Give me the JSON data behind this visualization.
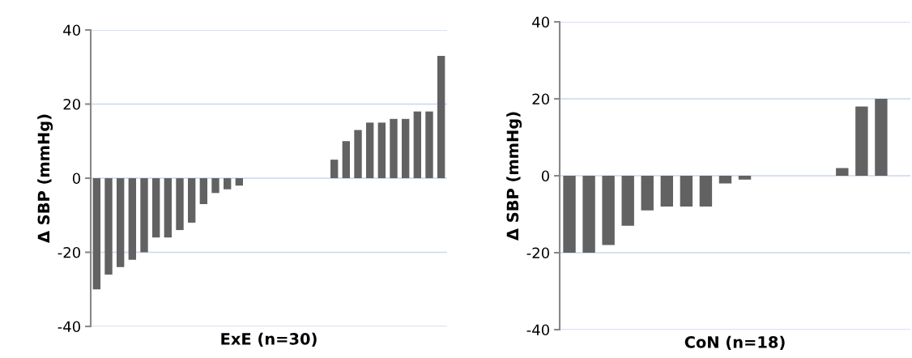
{
  "chart_data": [
    {
      "type": "bar",
      "xlabel": "ExE (n=30)",
      "ylabel": "Δ SBP (mmHg)",
      "categories": [
        null,
        null,
        null,
        null,
        null,
        null,
        null,
        null,
        null,
        null,
        null,
        null,
        null,
        null,
        null,
        null,
        null,
        null,
        null,
        null,
        null,
        null,
        null,
        null,
        null,
        null,
        null,
        null,
        null,
        null
      ],
      "series": [
        {
          "color": "#626262",
          "values": [
            -30,
            -26,
            -24,
            -22,
            -20,
            -16,
            -16,
            -14,
            -12,
            -7,
            -4,
            -3,
            -2,
            0,
            0,
            0,
            0,
            0,
            0,
            0,
            5,
            10,
            13,
            15,
            15,
            16,
            16,
            18,
            18,
            33
          ]
        }
      ],
      "ylim": [
        -40,
        40
      ],
      "yticks": [
        -40,
        -20,
        0,
        20,
        40
      ],
      "grid": "y",
      "legend": false
    },
    {
      "type": "bar",
      "xlabel": "CoN (n=18)",
      "ylabel": "Δ SBP (mmHg)",
      "categories": [
        null,
        null,
        null,
        null,
        null,
        null,
        null,
        null,
        null,
        null,
        null,
        null,
        null,
        null,
        null,
        null,
        null,
        null
      ],
      "series": [
        {
          "color": "#626262",
          "values": [
            -20,
            -20,
            -18,
            -13,
            -9,
            -8,
            -8,
            -8,
            -2,
            -1,
            0,
            0,
            0,
            0,
            2,
            18,
            20,
            null
          ]
        }
      ],
      "ylim": [
        -40,
        40
      ],
      "yticks": [
        -40,
        -20,
        0,
        20,
        40
      ],
      "grid": "y",
      "legend": false
    }
  ]
}
